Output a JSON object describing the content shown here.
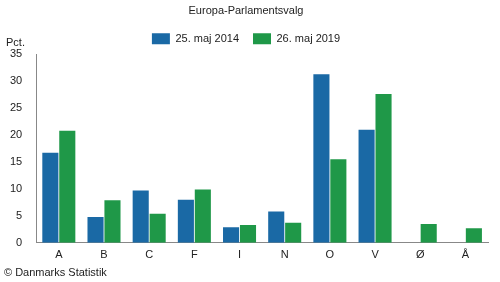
{
  "chart_data": {
    "type": "bar",
    "title": "Europa-Parlamentsvalg",
    "ylabel": "Pct.",
    "source": "© Danmarks Statistik",
    "categories": [
      "A",
      "B",
      "C",
      "F",
      "I",
      "N",
      "O",
      "V",
      "Ø",
      "Å"
    ],
    "series": [
      {
        "name": "25. maj 2014",
        "color": "#1a69a5",
        "values": [
          16.7,
          4.8,
          9.7,
          8.0,
          2.9,
          5.8,
          31.3,
          21.0,
          null,
          null
        ]
      },
      {
        "name": "26. maj 2019",
        "color": "#1f9848",
        "values": [
          20.8,
          7.9,
          5.4,
          9.9,
          3.3,
          3.7,
          15.5,
          27.6,
          3.5,
          2.7
        ]
      }
    ],
    "ylim": [
      0,
      35
    ],
    "yticks": [
      0,
      5,
      10,
      15,
      20,
      25,
      30,
      35
    ],
    "grid": false,
    "legend": "top"
  }
}
